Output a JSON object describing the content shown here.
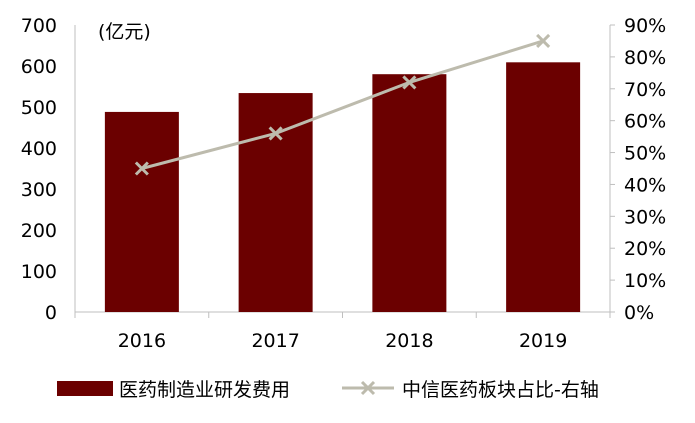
{
  "chart_data": {
    "type": "bar",
    "categories": [
      "2016",
      "2017",
      "2018",
      "2019"
    ],
    "unit_label": "(亿元)",
    "series": [
      {
        "name": "医药制造业研发费用",
        "type": "bar",
        "axis": "left",
        "color": "#6B0000",
        "values": [
          488,
          534,
          580,
          609
        ]
      },
      {
        "name": "中信医药板块占比-右轴",
        "type": "line",
        "axis": "right",
        "color": "#BDBBAD",
        "marker": "x",
        "values": [
          45,
          56,
          72,
          85
        ]
      }
    ],
    "y_left": {
      "min": 0,
      "max": 700,
      "ticks": [
        "0",
        "100",
        "200",
        "300",
        "400",
        "500",
        "600",
        "700"
      ]
    },
    "y_right": {
      "min": 0,
      "max": 90,
      "ticks": [
        "0%",
        "10%",
        "20%",
        "30%",
        "40%",
        "50%",
        "60%",
        "70%",
        "80%",
        "90%"
      ]
    },
    "grid": false,
    "legend_position": "bottom"
  }
}
